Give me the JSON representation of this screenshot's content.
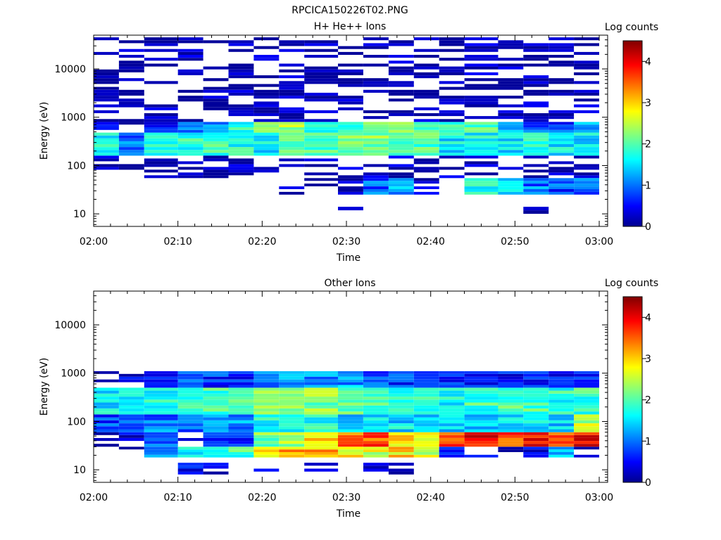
{
  "figure": {
    "title": "RPCICA150226T02.PNG"
  },
  "colorbar_colors": [
    "#00008f",
    "#0000ff",
    "#00ffff",
    "#ffff00",
    "#ff0000",
    "#800000"
  ],
  "chart_data": [
    {
      "type": "heatmap",
      "title": "H+ He++ Ions",
      "xlabel": "Time",
      "ylabel": "Energy (eV)",
      "x_tick_labels": [
        "02:00",
        "02:10",
        "02:20",
        "02:30",
        "02:40",
        "02:50",
        "03:00"
      ],
      "y_tick_labels": [
        "10",
        "100",
        "1000",
        "10000"
      ],
      "y_scale": "log",
      "ylim": [
        5.5,
        50000
      ],
      "xlim": [
        "02:00",
        "03:01"
      ],
      "colorbar": {
        "label": "Log counts",
        "range": [
          0,
          4.5
        ],
        "tick_labels": [
          "0",
          "1",
          "2",
          "3",
          "4"
        ]
      },
      "time_bins": [
        "02:00",
        "02:03",
        "02:06",
        "02:10",
        "02:13",
        "02:16",
        "02:19",
        "02:22",
        "02:25",
        "02:29",
        "02:32",
        "02:35",
        "02:38",
        "02:41",
        "02:44",
        "02:48",
        "02:51",
        "02:54",
        "02:57"
      ],
      "bands": [
        {
          "lo": 160,
          "hi": 480,
          "values": [
            1.6,
            0.9,
            1.7,
            1.8,
            1.9,
            1.7,
            1.6,
            1.9,
            2.0,
            2.1,
            2.2,
            1.9,
            2.0,
            1.6,
            1.7,
            1.6,
            1.7,
            1.6,
            1.5
          ]
        },
        {
          "lo": 480,
          "hi": 800,
          "values": [
            0.4,
            0.3,
            0.6,
            1.0,
            1.2,
            1.8,
            2.1,
            2.3,
            1.9,
            1.9,
            2.0,
            2.2,
            2.1,
            2.0,
            1.9,
            1.2,
            1.0,
            0.8,
            1.4
          ]
        },
        {
          "lo": 55,
          "hi": 160,
          "values": [
            0.2,
            0.1,
            0.1,
            0.1,
            0.1,
            0.1,
            0.1,
            0.1,
            0.1,
            0.1,
            0.2,
            0.2,
            0.2,
            0.2,
            0.2,
            0.2,
            0.2,
            0.1,
            0.2
          ]
        },
        {
          "lo": 25,
          "hi": 55,
          "values": [
            0.0,
            0.0,
            0.0,
            0.0,
            0.0,
            0.0,
            0.0,
            0.1,
            0.1,
            0.1,
            0.9,
            1.2,
            0.2,
            0.0,
            1.6,
            1.4,
            1.0,
            0.8,
            0.9
          ]
        },
        {
          "lo": 800,
          "hi": 45000,
          "values": [
            0.1,
            0.1,
            0.1,
            0.1,
            0.1,
            0.1,
            0.1,
            0.1,
            0.1,
            0.1,
            0.1,
            0.1,
            0.1,
            0.1,
            0.1,
            0.1,
            0.1,
            0.1,
            0.1
          ]
        },
        {
          "lo": 10,
          "hi": 14,
          "values": [
            0.0,
            0.0,
            0.0,
            0.0,
            0.0,
            0.0,
            0.0,
            0.0,
            0.0,
            0.1,
            0.0,
            0.0,
            0.0,
            0.0,
            0.0,
            0.0,
            0.1,
            0.0,
            0.0
          ]
        }
      ]
    },
    {
      "type": "heatmap",
      "title": "Other Ions",
      "xlabel": "Time",
      "ylabel": "Energy (eV)",
      "x_tick_labels": [
        "02:00",
        "02:10",
        "02:20",
        "02:30",
        "02:40",
        "02:50",
        "03:00"
      ],
      "y_tick_labels": [
        "10",
        "100",
        "1000",
        "10000"
      ],
      "y_scale": "log",
      "ylim": [
        5.5,
        50000
      ],
      "xlim": [
        "02:00",
        "03:01"
      ],
      "colorbar": {
        "label": "Log counts",
        "range": [
          0,
          4.5
        ],
        "tick_labels": [
          "0",
          "1",
          "2",
          "3",
          "4"
        ]
      },
      "time_bins": [
        "02:00",
        "02:03",
        "02:06",
        "02:10",
        "02:13",
        "02:16",
        "02:19",
        "02:22",
        "02:25",
        "02:29",
        "02:32",
        "02:35",
        "02:38",
        "02:41",
        "02:44",
        "02:48",
        "02:51",
        "02:54",
        "02:57"
      ],
      "bands": [
        {
          "lo": 18,
          "hi": 30,
          "values": [
            0.3,
            0.4,
            1.1,
            1.6,
            1.9,
            1.9,
            2.9,
            3.1,
            3.1,
            2.9,
            2.6,
            2.9,
            2.6,
            0.6,
            0.3,
            0.2,
            0.5,
            1.2,
            0.4
          ]
        },
        {
          "lo": 30,
          "hi": 60,
          "values": [
            0.3,
            0.4,
            0.8,
            0.2,
            0.6,
            0.6,
            2.1,
            2.3,
            3.0,
            3.4,
            3.6,
            3.0,
            2.9,
            3.6,
            4.0,
            3.7,
            3.8,
            3.6,
            3.9
          ]
        },
        {
          "lo": 60,
          "hi": 140,
          "values": [
            0.8,
            0.9,
            1.0,
            1.0,
            1.1,
            1.1,
            1.7,
            1.8,
            1.7,
            1.5,
            1.6,
            1.5,
            1.3,
            1.3,
            1.5,
            1.6,
            1.5,
            1.4,
            2.5
          ]
        },
        {
          "lo": 140,
          "hi": 500,
          "values": [
            1.5,
            1.7,
            1.7,
            1.8,
            1.9,
            2.0,
            2.1,
            2.2,
            2.2,
            2.1,
            1.9,
            1.9,
            1.9,
            1.7,
            1.9,
            1.9,
            1.9,
            1.8,
            1.9
          ]
        },
        {
          "lo": 500,
          "hi": 1100,
          "values": [
            0.4,
            0.4,
            0.5,
            0.8,
            0.7,
            0.7,
            0.9,
            1.3,
            1.1,
            1.2,
            0.9,
            0.7,
            0.6,
            0.6,
            0.6,
            0.5,
            0.5,
            0.5,
            0.5
          ]
        },
        {
          "lo": 8,
          "hi": 14,
          "values": [
            0.0,
            0.0,
            0.2,
            0.6,
            0.3,
            0.0,
            0.2,
            0.0,
            0.4,
            0.0,
            0.1,
            0.1,
            0.0,
            0.3,
            0.0,
            0.0,
            0.0,
            0.0,
            0.0
          ]
        }
      ]
    }
  ]
}
